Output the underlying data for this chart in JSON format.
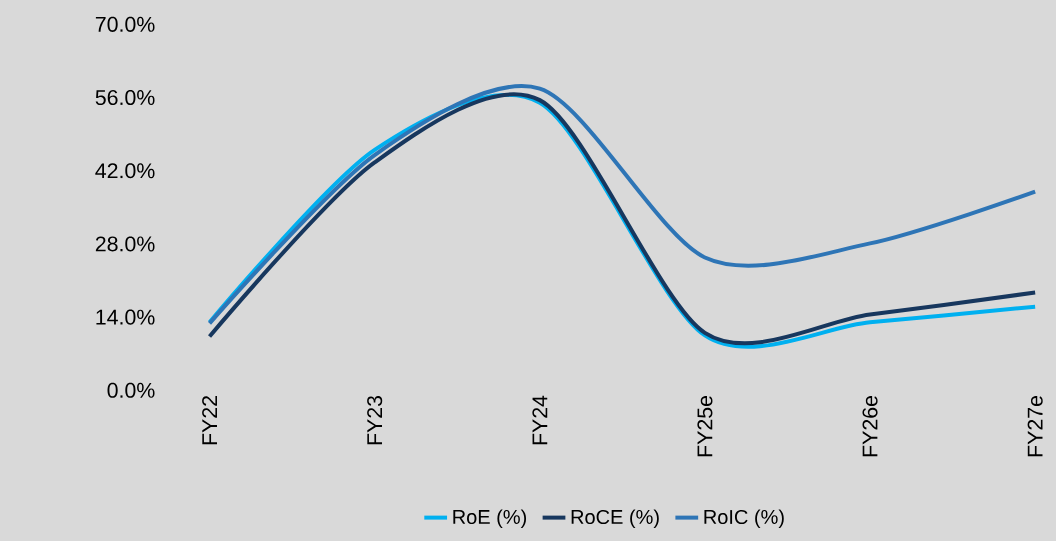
{
  "chart_data": {
    "type": "line",
    "categories": [
      "FY22",
      "FY23",
      "FY24",
      "FY25e",
      "FY26e",
      "FY27e"
    ],
    "series": [
      {
        "name": "RoE (%)",
        "color": "#00b0f0",
        "values": [
          13.0,
          46.0,
          55.0,
          10.5,
          13.0,
          16.0
        ]
      },
      {
        "name": "RoCE (%)",
        "color": "#17375e",
        "values": [
          10.3,
          43.6,
          55.5,
          11.0,
          14.5,
          18.7
        ]
      },
      {
        "name": "RoIC (%)",
        "color": "#2e75b6",
        "values": [
          12.8,
          45.0,
          57.7,
          25.4,
          28.1,
          38.0
        ]
      }
    ],
    "ylim": [
      0,
      70
    ],
    "yticks": [
      {
        "value": 0,
        "label": "0.0%"
      },
      {
        "value": 14,
        "label": "14.0%"
      },
      {
        "value": 28,
        "label": "28.0%"
      },
      {
        "value": 42,
        "label": "42.0%"
      },
      {
        "value": 56,
        "label": "56.0%"
      },
      {
        "value": 70,
        "label": "70.0%"
      }
    ],
    "legend": "bottom",
    "line_style": "solid",
    "marker": "none"
  }
}
